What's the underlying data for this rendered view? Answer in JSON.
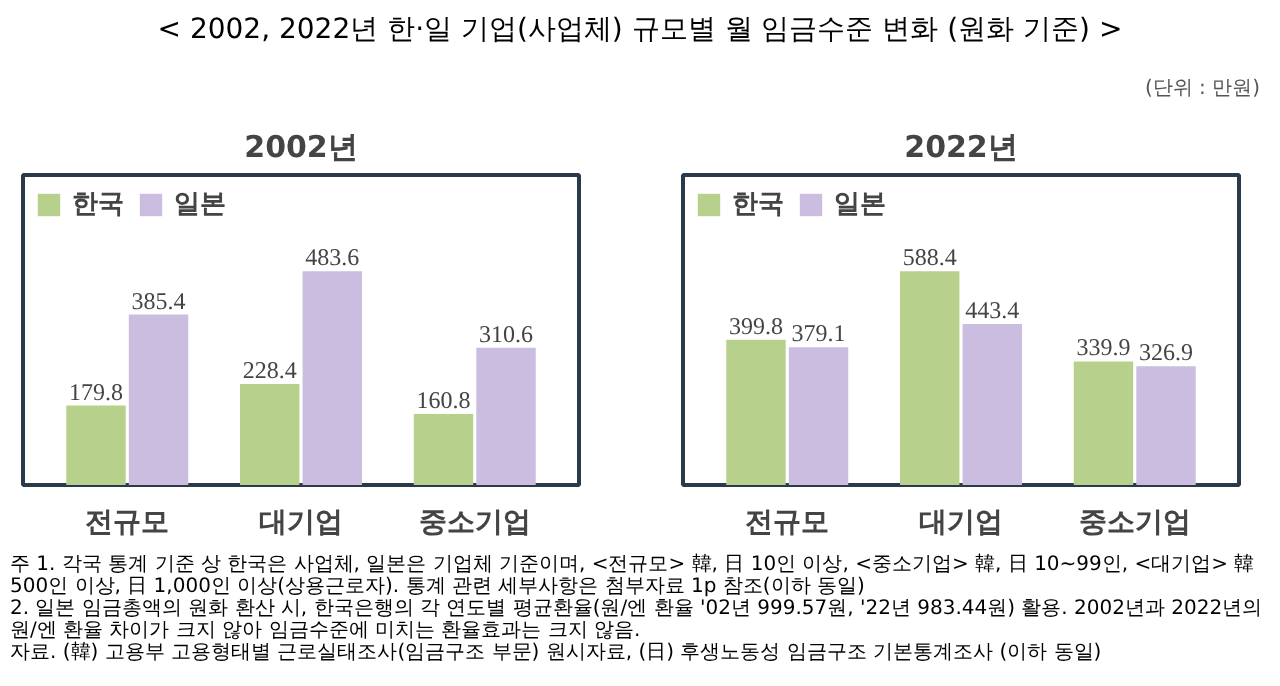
{
  "chart_data": [
    {
      "type": "bar",
      "title": "2002년",
      "categories": [
        "전규모",
        "대기업",
        "중소기업"
      ],
      "series": [
        {
          "name": "한국",
          "color": "#b7d18c",
          "values": [
            179.8,
            228.4,
            160.8
          ]
        },
        {
          "name": "일본",
          "color": "#cbbde0",
          "values": [
            385.4,
            483.6,
            310.6
          ]
        }
      ],
      "data_labels": true,
      "legend": "top left",
      "grid": false,
      "annotations": [
        "< 2002, 2022년 한·일 기업(사업체) 규모별 월 임금수준 변화 (원화 기준) >",
        "(단위 : 만원)",
        "주 1. 각국 통계 기준 상 한국은 사업체, 일본은 기업체 기준이며, <전규모> 韓, 日 10인 이상, <중소기업> 韓, 日 10~99인, <대기업> 韓 500인 이상, 日 1,000인 이상(상용근로자). 통계 관련 세부사항은 첨부자료 1p 참조(이하 동일)",
        "2. 일본 임금총액의 원화 환산 시, 한국은행의 각 연도별 평균환율(원/엔 환율 '02년 999.57원, '22년 983.44원) 활용. 2002년과 2022년의 원/엔 환율 차이가 크지 않아 임금수준에 미치는 환율효과는 크지 않음.",
        "자료. (韓) 고용부 고용형태별 근로실태조사(임금구조 부문) 원시자료, (日) 후생노동성 임금구조 기본통계조사 (이하 동일)"
      ]
    },
    {
      "type": "bar",
      "title": "2022년",
      "categories": [
        "전규모",
        "대기업",
        "중소기업"
      ],
      "series": [
        {
          "name": "한국",
          "color": "#b7d18c",
          "values": [
            399.8,
            588.4,
            339.9
          ]
        },
        {
          "name": "일본",
          "color": "#cbbde0",
          "values": [
            379.1,
            443.4,
            326.9
          ]
        }
      ],
      "data_labels": true,
      "legend": "top left",
      "grid": false
    }
  ]
}
